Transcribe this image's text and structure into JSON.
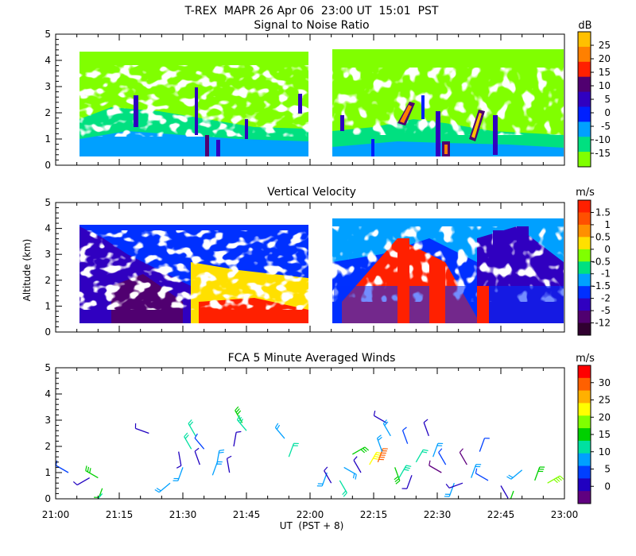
{
  "figure": {
    "title": "T-REX  MAPR 26 Apr 06  23:00 UT  15:01  PST",
    "xlabel": "UT  (PST + 8)",
    "ylabel": "Altitude (km)",
    "xticks": [
      "21:00",
      "21:15",
      "21:30",
      "21:45",
      "22:00",
      "22:15",
      "22:30",
      "22:45",
      "23:00"
    ],
    "yticks": [
      "0",
      "1",
      "2",
      "3",
      "4",
      "5"
    ]
  },
  "chart_data": [
    {
      "type": "heatmap",
      "title": "Signal to Noise Ratio",
      "unit": "dB",
      "x_range": [
        "21:00",
        "23:00"
      ],
      "ylim": [
        0,
        5
      ],
      "data_gap": [
        "22:00",
        "22:08"
      ],
      "colorbar": {
        "labels": [
          "25",
          "20",
          "15",
          "10",
          "5",
          "0",
          "-5",
          "-10",
          "-15"
        ],
        "colors": [
          "#ffc000",
          "#ff8000",
          "#ff2000",
          "#500070",
          "#3000c0",
          "#0020ff",
          "#00a0ff",
          "#00e080",
          "#80ff00"
        ]
      }
    },
    {
      "type": "heatmap",
      "title": "Vertical Velocity",
      "unit": "m/s",
      "x_range": [
        "21:00",
        "23:00"
      ],
      "ylim": [
        0,
        5
      ],
      "data_gap": [
        "22:00",
        "22:08"
      ],
      "colorbar": {
        "labels": [
          "1.5",
          "1",
          "0.5",
          "0",
          "-0.5",
          "-1",
          "-1.5",
          "-2",
          "-5",
          "-12"
        ],
        "colors": [
          "#ff2000",
          "#ff5000",
          "#ff9000",
          "#ffe000",
          "#80ff00",
          "#00e080",
          "#00a0ff",
          "#0030ff",
          "#3000c0",
          "#500070",
          "#300030"
        ]
      }
    },
    {
      "type": "scatter",
      "title": "FCA 5 Minute Averaged Winds",
      "unit": "m/s",
      "x_range": [
        "21:00",
        "23:00"
      ],
      "ylim": [
        0,
        5
      ],
      "colorbar": {
        "labels": [
          "30",
          "25",
          "20",
          "15",
          "10",
          "5",
          "0"
        ],
        "colors": [
          "#ff0000",
          "#ff6000",
          "#ffb000",
          "#ffff00",
          "#80ff00",
          "#00d000",
          "#00e0a0",
          "#00a0ff",
          "#0040ff",
          "#2000c0",
          "#600080"
        ]
      },
      "barbs": [
        {
          "t": 3,
          "alt": 1.0,
          "dir": 300,
          "spd": 7
        },
        {
          "t": 8,
          "alt": 0.8,
          "dir": 240,
          "spd": 4
        },
        {
          "t": 10,
          "alt": 0.8,
          "dir": 300,
          "spd": 16
        },
        {
          "t": 11,
          "alt": 0.4,
          "dir": 200,
          "spd": 14
        },
        {
          "t": 11,
          "alt": 0.2,
          "dir": 220,
          "spd": 12
        },
        {
          "t": 22,
          "alt": 2.5,
          "dir": 290,
          "spd": 2
        },
        {
          "t": 27,
          "alt": 0.6,
          "dir": 230,
          "spd": 9
        },
        {
          "t": 29,
          "alt": 1.8,
          "dir": 170,
          "spd": 4
        },
        {
          "t": 30,
          "alt": 1.2,
          "dir": 200,
          "spd": 8
        },
        {
          "t": 32,
          "alt": 1.9,
          "dir": 330,
          "spd": 11
        },
        {
          "t": 33,
          "alt": 2.4,
          "dir": 330,
          "spd": 12
        },
        {
          "t": 34,
          "alt": 1.3,
          "dir": 340,
          "spd": 3
        },
        {
          "t": 35,
          "alt": 1.9,
          "dir": 320,
          "spd": 6
        },
        {
          "t": 37,
          "alt": 0.9,
          "dir": 20,
          "spd": 10
        },
        {
          "t": 38,
          "alt": 1.3,
          "dir": 10,
          "spd": 8
        },
        {
          "t": 41,
          "alt": 1.0,
          "dir": 350,
          "spd": 2
        },
        {
          "t": 42,
          "alt": 2.0,
          "dir": 10,
          "spd": 3
        },
        {
          "t": 44,
          "alt": 2.9,
          "dir": 330,
          "spd": 14
        },
        {
          "t": 45,
          "alt": 2.6,
          "dir": 320,
          "spd": 13
        },
        {
          "t": 54,
          "alt": 2.3,
          "dir": 320,
          "spd": 9
        },
        {
          "t": 55,
          "alt": 1.6,
          "dir": 20,
          "spd": 12
        },
        {
          "t": 64,
          "alt": 1.0,
          "dir": 200,
          "spd": 8
        },
        {
          "t": 65,
          "alt": 0.6,
          "dir": 330,
          "spd": 3
        },
        {
          "t": 67,
          "alt": 0.7,
          "dir": 150,
          "spd": 12
        },
        {
          "t": 68,
          "alt": 1.2,
          "dir": 120,
          "spd": 8
        },
        {
          "t": 70,
          "alt": 1.7,
          "dir": 60,
          "spd": 15
        },
        {
          "t": 72,
          "alt": 1.0,
          "dir": 330,
          "spd": 2
        },
        {
          "t": 74,
          "alt": 1.3,
          "dir": 30,
          "spd": 22
        },
        {
          "t": 76,
          "alt": 1.4,
          "dir": 20,
          "spd": 28
        },
        {
          "t": 77,
          "alt": 1.8,
          "dir": 340,
          "spd": 8
        },
        {
          "t": 78,
          "alt": 2.9,
          "dir": 300,
          "spd": 4
        },
        {
          "t": 79,
          "alt": 2.4,
          "dir": 330,
          "spd": 10
        },
        {
          "t": 80,
          "alt": 1.2,
          "dir": 160,
          "spd": 15
        },
        {
          "t": 81,
          "alt": 0.8,
          "dir": 30,
          "spd": 13
        },
        {
          "t": 83,
          "alt": 2.1,
          "dir": 340,
          "spd": 7
        },
        {
          "t": 84,
          "alt": 0.9,
          "dir": 200,
          "spd": 2
        },
        {
          "t": 85,
          "alt": 1.4,
          "dir": 30,
          "spd": 11
        },
        {
          "t": 88,
          "alt": 2.4,
          "dir": 340,
          "spd": 2
        },
        {
          "t": 89,
          "alt": 1.6,
          "dir": 20,
          "spd": 8
        },
        {
          "t": 91,
          "alt": 1.0,
          "dir": 300,
          "spd": 1
        },
        {
          "t": 92,
          "alt": 1.3,
          "dir": 330,
          "spd": 6
        },
        {
          "t": 94,
          "alt": 0.6,
          "dir": 200,
          "spd": 10
        },
        {
          "t": 96,
          "alt": 0.6,
          "dir": 250,
          "spd": 3
        },
        {
          "t": 97,
          "alt": 1.3,
          "dir": 330,
          "spd": 1
        },
        {
          "t": 98,
          "alt": 0.8,
          "dir": 20,
          "spd": 9
        },
        {
          "t": 100,
          "alt": 1.8,
          "dir": 20,
          "spd": 7
        },
        {
          "t": 102,
          "alt": 0.7,
          "dir": 300,
          "spd": 5
        },
        {
          "t": 105,
          "alt": 0.5,
          "dir": 150,
          "spd": 3
        },
        {
          "t": 108,
          "alt": 0.3,
          "dir": 200,
          "spd": 14
        },
        {
          "t": 110,
          "alt": 1.1,
          "dir": 230,
          "spd": 10
        },
        {
          "t": 113,
          "alt": 0.7,
          "dir": 20,
          "spd": 15
        },
        {
          "t": 116,
          "alt": 0.6,
          "dir": 60,
          "spd": 19
        }
      ]
    }
  ]
}
